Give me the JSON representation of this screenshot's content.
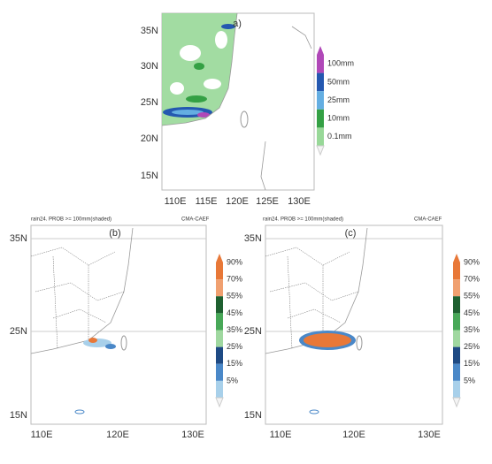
{
  "panel_a": {
    "label": "a)",
    "y_labels": [
      "35N",
      "30N",
      "25N",
      "20N",
      "15N"
    ],
    "x_labels": [
      "110E",
      "115E",
      "120E",
      "125E",
      "130E"
    ],
    "legend": [
      {
        "label": "100mm",
        "color": "#b048b8"
      },
      {
        "label": "50mm",
        "color": "#2458b0"
      },
      {
        "label": "25mm",
        "color": "#64aee2"
      },
      {
        "label": "10mm",
        "color": "#34a044"
      },
      {
        "label": "0.1mm",
        "color": "#98d898"
      }
    ]
  },
  "panel_b": {
    "title": "rain24. PROB >= 100mm(shaded)",
    "source": "CMA-CAEF",
    "label": "(b)",
    "y_labels": [
      "35N",
      "25N",
      "15N"
    ],
    "x_labels": [
      "110E",
      "120E",
      "130E"
    ],
    "legend": [
      {
        "label": "90%",
        "color": "#e87838"
      },
      {
        "label": "70%",
        "color": "#f0a070"
      },
      {
        "label": "55%",
        "color": "#1e6030"
      },
      {
        "label": "45%",
        "color": "#48a858"
      },
      {
        "label": "35%",
        "color": "#a0d8a0"
      },
      {
        "label": "25%",
        "color": "#1e4a84"
      },
      {
        "label": "15%",
        "color": "#4a88c8"
      },
      {
        "label": "5%",
        "color": "#a8d0ea"
      }
    ]
  },
  "panel_c": {
    "title": "rain24. PROB >= 100mm(shaded)",
    "source": "CMA-CAEF",
    "label": "(c)",
    "y_labels": [
      "35N",
      "25N",
      "15N"
    ],
    "x_labels": [
      "110E",
      "120E",
      "130E"
    ],
    "legend": [
      {
        "label": "90%",
        "color": "#e87838"
      },
      {
        "label": "70%",
        "color": "#f0a070"
      },
      {
        "label": "55%",
        "color": "#1e6030"
      },
      {
        "label": "45%",
        "color": "#48a858"
      },
      {
        "label": "35%",
        "color": "#a0d8a0"
      },
      {
        "label": "25%",
        "color": "#1e4a84"
      },
      {
        "label": "15%",
        "color": "#4a88c8"
      },
      {
        "label": "5%",
        "color": "#a8d0ea"
      }
    ]
  }
}
